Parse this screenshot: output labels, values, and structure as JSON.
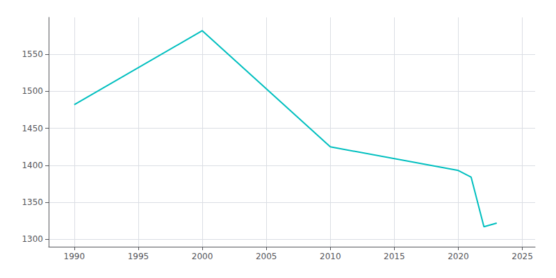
{
  "chart_data": {
    "type": "line",
    "x": [
      1990,
      2000,
      2010,
      2020,
      2021,
      2022,
      2023
    ],
    "values": [
      1482,
      1582,
      1425,
      1393,
      1384,
      1317,
      1322
    ],
    "color": "#00BFBF",
    "xlim": [
      1988,
      2026
    ],
    "ylim": [
      1290,
      1600
    ],
    "xticks": [
      1990,
      1995,
      2000,
      2005,
      2010,
      2015,
      2020,
      2025
    ],
    "yticks": [
      1300,
      1350,
      1400,
      1450,
      1500,
      1550
    ],
    "grid": true
  }
}
